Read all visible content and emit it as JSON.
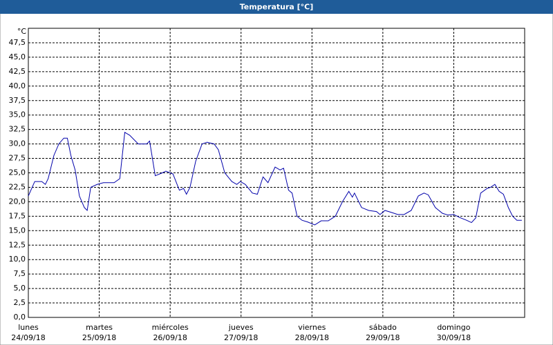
{
  "window_title": "Temperatura [°C]",
  "chart_data": {
    "type": "line",
    "ylabel": "°C",
    "x": [
      0,
      0.09,
      0.19,
      0.24,
      0.28,
      0.36,
      0.43,
      0.5,
      0.55,
      0.6,
      0.66,
      0.72,
      0.79,
      0.83,
      0.88,
      0.97,
      1.06,
      1.21,
      1.29,
      1.36,
      1.43,
      1.55,
      1.67,
      1.71,
      1.79,
      1.89,
      1.94,
      2.04,
      2.13,
      2.19,
      2.23,
      2.28,
      2.36,
      2.45,
      2.52,
      2.62,
      2.68,
      2.77,
      2.87,
      2.94,
      2.99,
      3.06,
      3.16,
      3.23,
      3.31,
      3.38,
      3.48,
      3.55,
      3.6,
      3.67,
      3.72,
      3.79,
      3.86,
      3.94,
      4.04,
      4.13,
      4.23,
      4.33,
      4.43,
      4.52,
      4.57,
      4.6,
      4.7,
      4.8,
      4.91,
      4.96,
      5.03,
      5.11,
      5.21,
      5.3,
      5.4,
      5.5,
      5.58,
      5.64,
      5.74,
      5.84,
      5.92,
      6,
      6.08,
      6.18,
      6.25,
      6.31,
      6.38,
      6.47,
      6.52,
      6.58,
      6.64,
      6.7,
      6.77,
      6.83,
      6.89,
      6.96
    ],
    "series": [
      {
        "color": "#0000aa",
        "values": [
          21,
          23.5,
          23.5,
          23,
          24,
          28,
          30,
          31,
          31,
          28,
          25.5,
          21,
          19,
          18.5,
          22.5,
          23,
          23.3,
          23.3,
          24,
          32,
          31.5,
          30,
          30,
          30.5,
          24.5,
          25,
          25.3,
          24.8,
          22,
          22.3,
          21.3,
          22.5,
          27,
          30,
          30.3,
          30,
          29,
          25,
          23.5,
          23,
          23.5,
          23,
          21.5,
          21.3,
          24.3,
          23.3,
          26,
          25.5,
          25.8,
          22,
          21.5,
          17.5,
          16.8,
          16.5,
          16,
          16.7,
          16.7,
          17.5,
          20,
          21.8,
          20.8,
          21.5,
          19,
          18.5,
          18.3,
          17.8,
          18.5,
          18.2,
          17.8,
          17.8,
          18.5,
          21,
          21.5,
          21.2,
          19,
          18,
          17.7,
          17.8,
          17.3,
          16.8,
          16.4,
          17.2,
          21.5,
          22.3,
          22.5,
          23,
          21.8,
          21.3,
          19,
          17.5,
          16.8,
          16.8
        ]
      }
    ],
    "xlim": [
      0,
      7
    ],
    "xticks": [
      {
        "value": 0,
        "label": "lunes"
      },
      {
        "value": 1,
        "label": "martes"
      },
      {
        "value": 2,
        "label": "miércoles"
      },
      {
        "value": 3,
        "label": "jueves"
      },
      {
        "value": 4,
        "label": "viernes"
      },
      {
        "value": 5,
        "label": "sábado"
      },
      {
        "value": 6,
        "label": "domingo"
      }
    ],
    "xtick_dates": [
      "24/09/18",
      "25/09/18",
      "26/09/18",
      "27/09/18",
      "28/09/18",
      "29/09/18",
      "30/09/18"
    ],
    "ylim": [
      0,
      50
    ],
    "yticks": [
      {
        "value": 0,
        "label": "0,0"
      },
      {
        "value": 2.5,
        "label": "2,5"
      },
      {
        "value": 5,
        "label": "5,0"
      },
      {
        "value": 7.5,
        "label": "7,5"
      },
      {
        "value": 10,
        "label": "10,0"
      },
      {
        "value": 12.5,
        "label": "12,5"
      },
      {
        "value": 15,
        "label": "15,0"
      },
      {
        "value": 17.5,
        "label": "17,5"
      },
      {
        "value": 20,
        "label": "20,0"
      },
      {
        "value": 22.5,
        "label": "22,5"
      },
      {
        "value": 25,
        "label": "25,0"
      },
      {
        "value": 27.5,
        "label": "27,5"
      },
      {
        "value": 30,
        "label": "30,0"
      },
      {
        "value": 32.5,
        "label": "32,5"
      },
      {
        "value": 35,
        "label": "35,0"
      },
      {
        "value": 37.5,
        "label": "37,5"
      },
      {
        "value": 40,
        "label": "40,0"
      },
      {
        "value": 42.5,
        "label": "42,5"
      },
      {
        "value": 45,
        "label": "45,0"
      },
      {
        "value": 47.5,
        "label": "47,5"
      }
    ],
    "grid": true
  }
}
